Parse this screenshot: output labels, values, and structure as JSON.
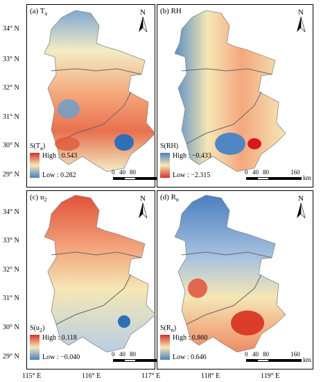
{
  "panels": [
    {
      "label_main": "(a) T",
      "label_sub": "a",
      "legend_title": "S(T",
      "legend_title_sub": "a",
      "legend_title_end": ")",
      "high": "High : 0.543",
      "low": "Low : 0.282",
      "colors": {
        "high": "#d73027",
        "low": "#4a7fc0"
      }
    },
    {
      "label_main": "(b) RH",
      "label_sub": "",
      "legend_title": "S(RH)",
      "legend_title_sub": "",
      "legend_title_end": "",
      "high": "High : −0.433",
      "low": "Low : −2.315",
      "colors": {
        "high": "#4a7fc0",
        "low": "#d73027"
      }
    },
    {
      "label_main": "(c) u",
      "label_sub": "2",
      "legend_title": "S(u",
      "legend_title_sub": "2",
      "legend_title_end": ")",
      "high": "High : 0.118",
      "low": "Low : −0.040",
      "colors": {
        "high": "#d73027",
        "low": "#4a7fc0"
      }
    },
    {
      "label_main": "(d) R",
      "label_sub": "n",
      "legend_title": "S(R",
      "legend_title_sub": "n",
      "legend_title_end": ")",
      "high": "High : 0.860",
      "low": "Low : 0.646",
      "colors": {
        "high": "#d73027",
        "low": "#4a7fc0"
      }
    }
  ],
  "north_letter": "N",
  "lat_ticks": [
    "34° N",
    "33° N",
    "32° N",
    "31° N",
    "30° N",
    "29° N"
  ],
  "lon_ticks": [
    "115° E",
    "116° E",
    "117° E",
    "118° E",
    "119° E"
  ],
  "scalebar": {
    "numbers": [
      "0",
      "40",
      "80",
      "160"
    ],
    "unit": "km"
  }
}
